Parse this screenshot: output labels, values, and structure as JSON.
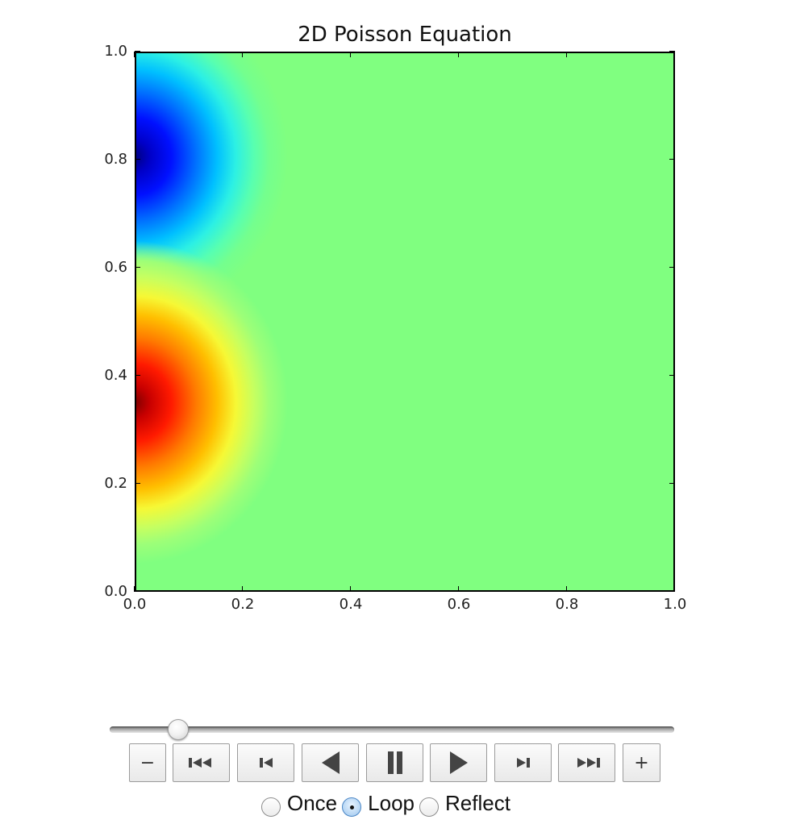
{
  "chart_data": {
    "type": "heatmap",
    "title": "2D Poisson Equation",
    "xlabel": "",
    "ylabel": "",
    "xlim": [
      0.0,
      1.0
    ],
    "ylim": [
      0.0,
      1.0
    ],
    "x_ticks": [
      "0.0",
      "0.2",
      "0.4",
      "0.6",
      "0.8",
      "1.0"
    ],
    "y_ticks": [
      "0.0",
      "0.2",
      "0.4",
      "0.6",
      "0.8",
      "1.0"
    ],
    "colormap": "jet",
    "background_value_color": "#80ff80",
    "features": [
      {
        "kind": "positive-peak",
        "x": 0.0,
        "y": 0.25,
        "color": "#7f0000"
      },
      {
        "kind": "negative-peak",
        "x": 0.0,
        "y": 0.75,
        "color": "#00007f"
      }
    ],
    "grid": false
  },
  "animation": {
    "slider_fraction": 0.12,
    "buttons": {
      "decrease": "−",
      "first": "first-frame-icon",
      "previous": "previous-frame-icon",
      "reverse": "play-reverse-icon",
      "pause": "pause-icon",
      "play": "play-icon",
      "next": "next-frame-icon",
      "last": "last-frame-icon",
      "increase": "+"
    },
    "loop_modes": [
      {
        "label": "Once",
        "checked": false
      },
      {
        "label": "Loop",
        "checked": true
      },
      {
        "label": "Reflect",
        "checked": false
      }
    ]
  }
}
